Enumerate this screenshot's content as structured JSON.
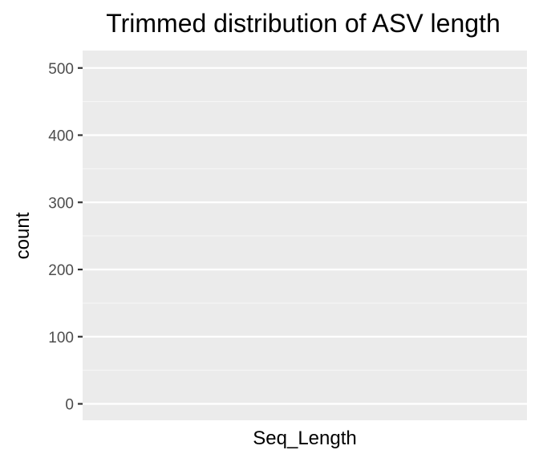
{
  "chart_data": {
    "type": "bar",
    "title": "Trimmed distribution of ASV length",
    "xlabel": "Seq_Length",
    "ylabel": "count",
    "categories": [],
    "values": [],
    "ylim": [
      0,
      525
    ],
    "yticks": [
      0,
      100,
      200,
      300,
      400,
      500
    ],
    "ytick_labels": [
      "0",
      "100",
      "200",
      "300",
      "400",
      "500"
    ],
    "grid": true,
    "legend": "none",
    "colors": {
      "panel_background": "#ebebeb",
      "grid_major": "#ffffff",
      "grid_minor": "#f7f7f7",
      "tick_label": "#4d4d4d",
      "tick_mark": "#333333",
      "text": "#000000"
    }
  }
}
